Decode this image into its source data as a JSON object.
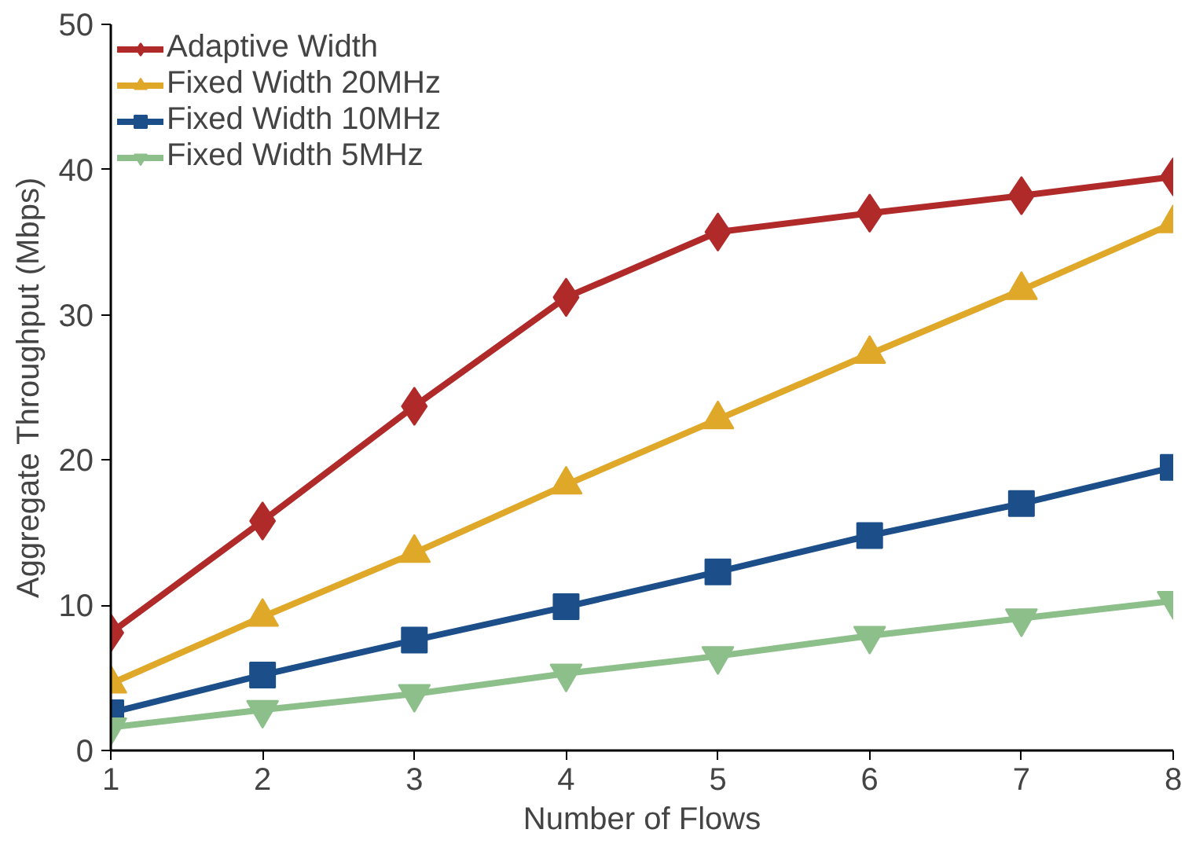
{
  "chart_data": {
    "type": "line",
    "xlabel": "Number of Flows",
    "ylabel": "Aggregate Throughput (Mbps)",
    "x": [
      1,
      2,
      3,
      4,
      5,
      6,
      7,
      8
    ],
    "xlim": [
      1,
      8
    ],
    "xticks": [
      1,
      2,
      3,
      4,
      5,
      6,
      7,
      8
    ],
    "ylim": [
      0,
      50
    ],
    "yticks": [
      0,
      10,
      20,
      30,
      40,
      50
    ],
    "grid": false,
    "legend": "top left",
    "line_style": "solid",
    "series": [
      {
        "name": "Adaptive Width",
        "color": "#b02a2a",
        "marker": "diamond",
        "values": [
          8.1,
          15.8,
          23.7,
          31.2,
          35.7,
          37.0,
          38.2,
          39.5
        ]
      },
      {
        "name": "Fixed Width 20MHz",
        "color": "#e0a829",
        "marker": "triangle",
        "values": [
          4.6,
          9.2,
          13.6,
          18.3,
          22.8,
          27.3,
          31.7,
          36.3
        ]
      },
      {
        "name": "Fixed Width 10MHz",
        "color": "#1c4f8a",
        "marker": "square",
        "values": [
          2.6,
          5.2,
          7.6,
          9.9,
          12.3,
          14.8,
          17.0,
          19.5
        ]
      },
      {
        "name": "Fixed Width 5MHz",
        "color": "#8dbf8a",
        "marker": "triangle",
        "values": [
          1.6,
          2.8,
          3.9,
          5.3,
          6.5,
          7.9,
          9.1,
          10.3
        ]
      }
    ]
  }
}
